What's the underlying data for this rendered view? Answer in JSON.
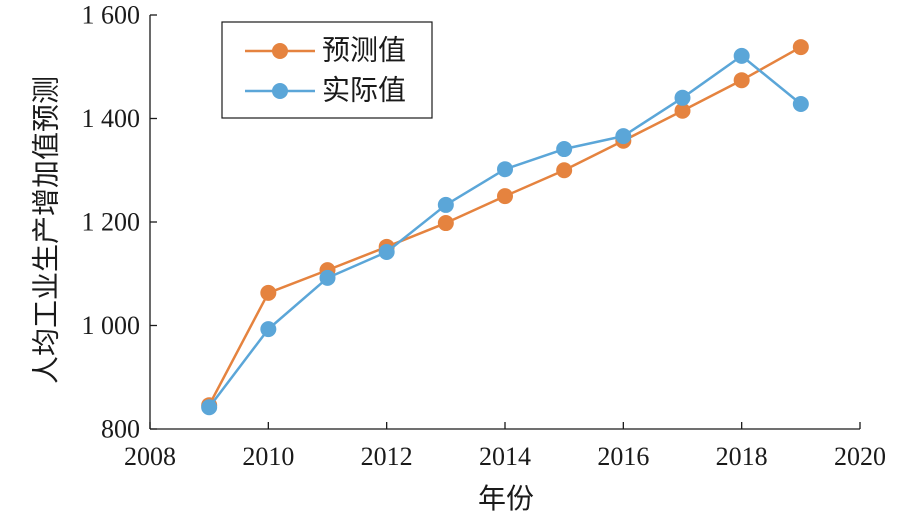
{
  "chart_data": {
    "type": "line",
    "x": [
      2009,
      2010,
      2011,
      2012,
      2013,
      2014,
      2015,
      2016,
      2017,
      2018,
      2019
    ],
    "series": [
      {
        "name": "预测值",
        "color": "#E5833F",
        "values": [
          846,
          1063,
          1107,
          1152,
          1198,
          1250,
          1300,
          1357,
          1415,
          1474,
          1538
        ]
      },
      {
        "name": "实际值",
        "color": "#5BA6D8",
        "values": [
          842,
          993,
          1092,
          1142,
          1233,
          1302,
          1341,
          1366,
          1440,
          1521,
          1428
        ]
      }
    ],
    "xlabel": "年份",
    "ylabel": "人均工业生产增加值预测",
    "xlim": [
      2008,
      2020
    ],
    "ylim": [
      800,
      1600
    ],
    "xticks": [
      2008,
      2010,
      2012,
      2014,
      2016,
      2018,
      2020
    ],
    "xtick_labels": [
      "2008",
      "2010",
      "2012",
      "2014",
      "2016",
      "2018",
      "2020"
    ],
    "yticks": [
      800,
      1000,
      1200,
      1400,
      1600
    ],
    "ytick_labels": [
      "800",
      "1 000",
      "1 200",
      "1 400",
      "1 600"
    ],
    "grid": false,
    "legend_position": "top-left"
  }
}
